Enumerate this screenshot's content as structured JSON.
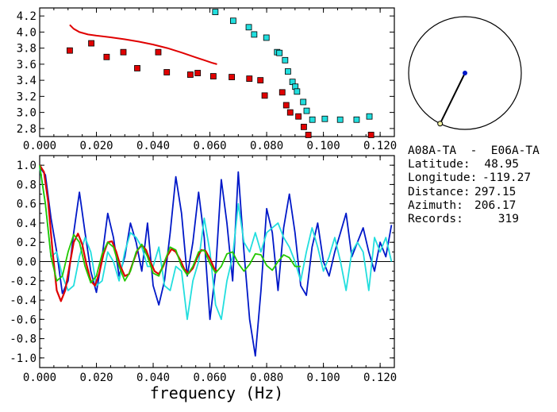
{
  "colors": {
    "red": "#e00000",
    "cyan": "#22dede",
    "blue": "#0018c8",
    "green": "#22c800",
    "axes": "#000000"
  },
  "info": {
    "title": "A08A-TA  -  E06A-TA",
    "rows": [
      {
        "label": "Latitude:",
        "value": "48.95"
      },
      {
        "label": "Longitude:",
        "value": "-119.27"
      },
      {
        "label": "Distance:",
        "value": "297.15"
      },
      {
        "label": "Azimuth:",
        "value": "206.17"
      },
      {
        "label": "Records:",
        "value": "319"
      }
    ]
  },
  "chart_data": [
    {
      "type": "scatter",
      "xlim": [
        0.0,
        0.125
      ],
      "ylim": [
        2.7,
        4.3
      ],
      "x_ticks": [
        "0.000",
        "0.020",
        "0.040",
        "0.060",
        "0.080",
        "0.100",
        "0.120"
      ],
      "y_ticks": [
        "2.8",
        "3.0",
        "3.2",
        "3.4",
        "3.6",
        "3.8",
        "4.0",
        "4.2"
      ],
      "series": [
        {
          "kind": "line",
          "color": "red",
          "x": [
            0.0106,
            0.012,
            0.014,
            0.017,
            0.02,
            0.025,
            0.03,
            0.035,
            0.04,
            0.045,
            0.05,
            0.055,
            0.058,
            0.061,
            0.0625
          ],
          "y": [
            4.09,
            4.04,
            4.0,
            3.97,
            3.955,
            3.935,
            3.91,
            3.88,
            3.845,
            3.8,
            3.745,
            3.685,
            3.65,
            3.615,
            3.6
          ]
        },
        {
          "kind": "markers",
          "color": "red",
          "x": [
            0.0106,
            0.0182,
            0.0236,
            0.0295,
            0.0344,
            0.0418,
            0.0448,
            0.0531,
            0.0557,
            0.0612,
            0.0677,
            0.0739,
            0.0778,
            0.0793,
            0.0855,
            0.0869,
            0.0883,
            0.0912,
            0.0931,
            0.0947,
            0.1168
          ],
          "y": [
            3.77,
            3.86,
            3.69,
            3.75,
            3.55,
            3.75,
            3.5,
            3.47,
            3.49,
            3.45,
            3.44,
            3.42,
            3.4,
            3.21,
            3.25,
            3.09,
            3.0,
            2.95,
            2.82,
            2.72,
            2.72
          ]
        },
        {
          "kind": "markers",
          "color": "cyan",
          "x": [
            0.0619,
            0.0682,
            0.0737,
            0.0756,
            0.0799,
            0.0837,
            0.0845,
            0.0865,
            0.0875,
            0.0891,
            0.0901,
            0.0907,
            0.0929,
            0.0941,
            0.0961,
            0.1005,
            0.1059,
            0.1117,
            0.1162
          ],
          "y": [
            4.25,
            4.14,
            4.06,
            3.97,
            3.93,
            3.75,
            3.74,
            3.65,
            3.51,
            3.38,
            3.32,
            3.26,
            3.13,
            3.02,
            2.91,
            2.92,
            2.91,
            2.91,
            2.95
          ]
        }
      ]
    },
    {
      "type": "line",
      "xlim": [
        0.0,
        0.125
      ],
      "ylim": [
        -1.1,
        1.1
      ],
      "xlabel": "frequency (Hz)",
      "x_ticks": [
        "0.000",
        "0.020",
        "0.040",
        "0.060",
        "0.080",
        "0.100",
        "0.120"
      ],
      "y_ticks": [
        "1.0",
        "0.8",
        "0.6",
        "0.4",
        "0.2",
        "0.0",
        "-0.2",
        "-0.4",
        "-0.6",
        "-0.8",
        "-1.0"
      ],
      "series": [
        {
          "color": "blue",
          "x": [
            0.0,
            0.002,
            0.004,
            0.006,
            0.008,
            0.01,
            0.012,
            0.014,
            0.016,
            0.018,
            0.02,
            0.022,
            0.024,
            0.026,
            0.028,
            0.03,
            0.032,
            0.034,
            0.036,
            0.038,
            0.04,
            0.042,
            0.044,
            0.046,
            0.048,
            0.05,
            0.052,
            0.054,
            0.056,
            0.058,
            0.06,
            0.062,
            0.064,
            0.066,
            0.068,
            0.07,
            0.072,
            0.074,
            0.076,
            0.078,
            0.08,
            0.082,
            0.084,
            0.086,
            0.088,
            0.09,
            0.092,
            0.094,
            0.096,
            0.098,
            0.1,
            0.102,
            0.104,
            0.106,
            0.108,
            0.11,
            0.112,
            0.114,
            0.116,
            0.118,
            0.12,
            0.122,
            0.124
          ],
          "y": [
            0.98,
            0.9,
            0.45,
            0.1,
            -0.33,
            -0.2,
            0.3,
            0.72,
            0.3,
            -0.1,
            -0.32,
            0.05,
            0.5,
            0.25,
            -0.15,
            0.05,
            0.4,
            0.2,
            -0.1,
            0.4,
            -0.25,
            -0.45,
            -0.2,
            0.3,
            0.88,
            0.5,
            -0.15,
            0.2,
            0.72,
            0.25,
            -0.6,
            -0.1,
            0.85,
            0.4,
            -0.2,
            0.93,
            0.1,
            -0.6,
            -0.98,
            -0.3,
            0.55,
            0.3,
            -0.3,
            0.35,
            0.7,
            0.3,
            -0.25,
            -0.35,
            0.15,
            0.4,
            0.0,
            -0.15,
            0.1,
            0.3,
            0.5,
            0.05,
            0.2,
            0.35,
            0.1,
            -0.1,
            0.2,
            0.05,
            0.38
          ]
        },
        {
          "color": "cyan",
          "x": [
            0.0,
            0.002,
            0.004,
            0.006,
            0.008,
            0.01,
            0.012,
            0.014,
            0.016,
            0.018,
            0.02,
            0.022,
            0.024,
            0.026,
            0.028,
            0.03,
            0.032,
            0.034,
            0.036,
            0.038,
            0.04,
            0.042,
            0.044,
            0.046,
            0.048,
            0.05,
            0.052,
            0.054,
            0.056,
            0.058,
            0.06,
            0.062,
            0.064,
            0.066,
            0.068,
            0.07,
            0.072,
            0.074,
            0.076,
            0.078,
            0.08,
            0.082,
            0.084,
            0.086,
            0.088,
            0.09,
            0.092,
            0.094,
            0.096,
            0.098,
            0.1,
            0.102,
            0.104,
            0.106,
            0.108,
            0.11,
            0.112,
            0.114,
            0.116,
            0.118,
            0.12,
            0.122,
            0.124
          ],
          "y": [
            0.98,
            0.6,
            0.05,
            0.1,
            -0.15,
            -0.3,
            -0.25,
            0.05,
            0.25,
            0.1,
            -0.25,
            -0.2,
            0.1,
            0.0,
            -0.2,
            0.1,
            0.3,
            0.25,
            0.15,
            -0.05,
            -0.05,
            0.15,
            -0.25,
            -0.3,
            -0.05,
            -0.1,
            -0.6,
            -0.2,
            0.0,
            0.45,
            0.1,
            -0.45,
            -0.6,
            -0.2,
            0.05,
            0.6,
            0.2,
            0.1,
            0.3,
            0.1,
            0.3,
            0.35,
            0.4,
            0.25,
            0.15,
            0.0,
            -0.2,
            0.1,
            0.35,
            0.15,
            -0.1,
            0.05,
            0.25,
            0.0,
            -0.3,
            0.1,
            0.2,
            0.1,
            -0.3,
            0.25,
            0.1,
            0.25,
            0.0
          ]
        },
        {
          "color": "red",
          "x": [
            0.0,
            0.0015,
            0.003,
            0.0045,
            0.006,
            0.0075,
            0.009,
            0.0105,
            0.012,
            0.0135,
            0.015,
            0.0165,
            0.018,
            0.0195,
            0.021,
            0.0225,
            0.024,
            0.0255,
            0.027,
            0.0285,
            0.03,
            0.0315,
            0.033,
            0.0345,
            0.036,
            0.0375,
            0.039,
            0.0405,
            0.042,
            0.0435,
            0.045,
            0.0465,
            0.048,
            0.0495,
            0.051,
            0.0525,
            0.054,
            0.0555,
            0.057,
            0.0585,
            0.06,
            0.0615,
            0.0625
          ],
          "y": [
            1.0,
            0.93,
            0.62,
            0.12,
            -0.3,
            -0.41,
            -0.3,
            -0.05,
            0.2,
            0.29,
            0.18,
            -0.03,
            -0.2,
            -0.25,
            -0.12,
            0.08,
            0.2,
            0.21,
            0.1,
            -0.05,
            -0.15,
            -0.13,
            0.0,
            0.12,
            0.17,
            0.12,
            0.0,
            -0.1,
            -0.13,
            -0.05,
            0.06,
            0.13,
            0.1,
            0.02,
            -0.08,
            -0.12,
            -0.07,
            0.04,
            0.12,
            0.11,
            0.03,
            -0.07,
            -0.1
          ]
        },
        {
          "color": "green",
          "x": [
            0.0,
            0.002,
            0.004,
            0.006,
            0.008,
            0.01,
            0.012,
            0.014,
            0.016,
            0.018,
            0.02,
            0.022,
            0.024,
            0.026,
            0.028,
            0.03,
            0.032,
            0.034,
            0.036,
            0.038,
            0.04,
            0.042,
            0.044,
            0.046,
            0.048,
            0.05,
            0.052,
            0.054,
            0.056,
            0.058,
            0.06,
            0.062,
            0.064,
            0.066,
            0.068,
            0.07,
            0.072,
            0.074,
            0.076,
            0.078,
            0.08,
            0.082,
            0.084,
            0.086,
            0.088,
            0.09,
            0.092
          ],
          "y": [
            1.0,
            0.6,
            0.05,
            -0.2,
            -0.15,
            0.1,
            0.28,
            0.2,
            -0.05,
            -0.22,
            -0.15,
            0.08,
            0.2,
            0.15,
            -0.05,
            -0.2,
            -0.1,
            0.1,
            0.18,
            0.05,
            -0.12,
            -0.15,
            0.0,
            0.15,
            0.12,
            -0.05,
            -0.14,
            -0.05,
            0.1,
            0.12,
            -0.02,
            -0.12,
            -0.05,
            0.08,
            0.1,
            -0.02,
            -0.1,
            -0.03,
            0.08,
            0.07,
            -0.04,
            -0.09,
            0.0,
            0.07,
            0.04,
            -0.05,
            -0.05
          ]
        }
      ]
    },
    {
      "type": "scatter",
      "title": "",
      "note_kind": "azimuth-circle",
      "azimuth_deg": 206.17,
      "center_marker_color": "#0018c8",
      "end_marker_color": "#f0f0a0"
    }
  ]
}
